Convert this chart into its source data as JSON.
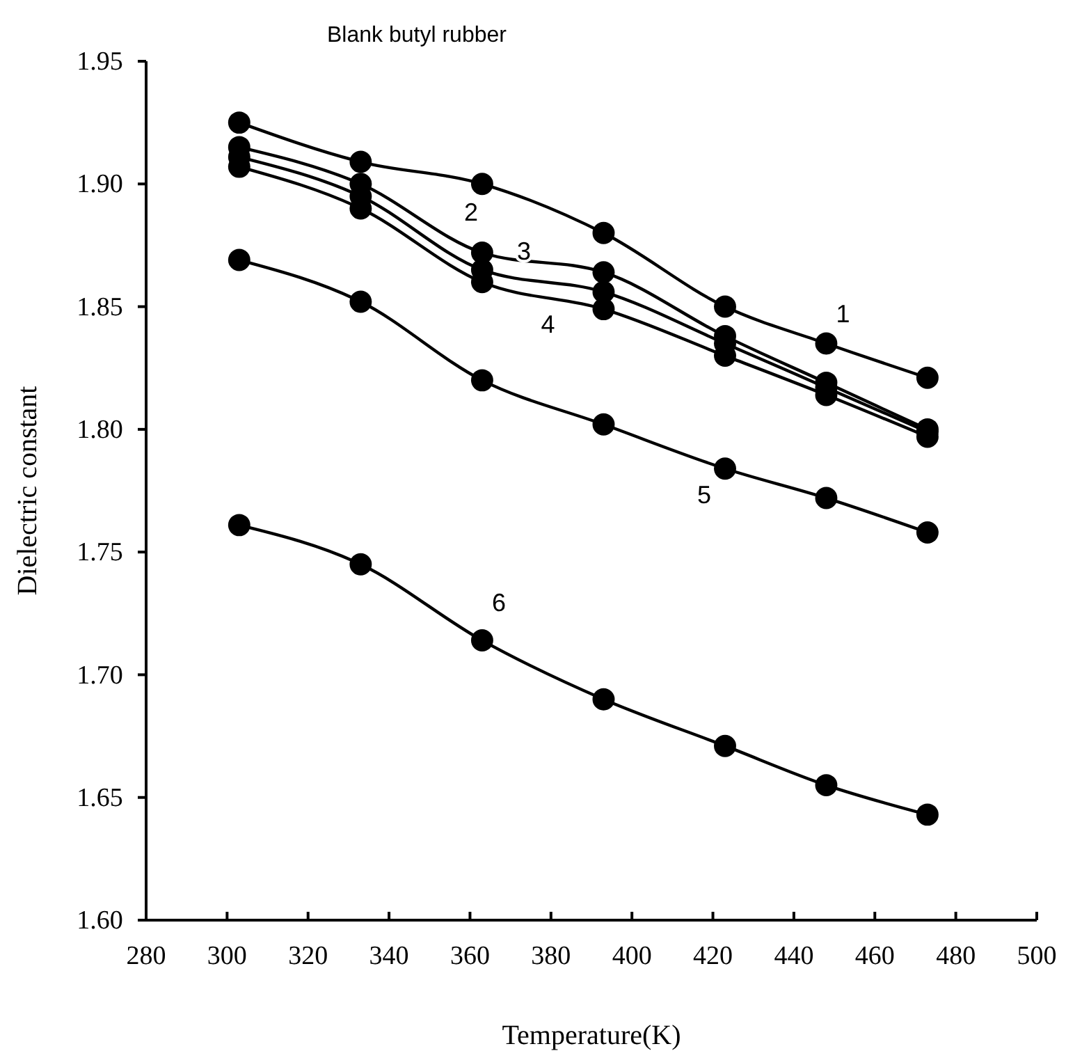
{
  "chart_data": {
    "type": "line",
    "title": "Blank butyl rubber",
    "xlabel": "Temperature(K)",
    "ylabel": "Dielectric constant",
    "x": [
      303,
      333,
      363,
      393,
      423,
      448,
      473
    ],
    "series": [
      {
        "color": "#000000",
        "values": [
          1.925,
          1.909,
          1.9,
          1.88,
          1.85,
          1.835,
          1.821
        ]
      },
      {
        "color": "#000000",
        "values": [
          1.915,
          1.9,
          1.872,
          1.864,
          1.838,
          1.819,
          1.8
        ]
      },
      {
        "color": "#000000",
        "values": [
          1.911,
          1.895,
          1.865,
          1.856,
          1.835,
          1.817,
          1.799
        ]
      },
      {
        "color": "#000000",
        "values": [
          1.907,
          1.89,
          1.86,
          1.849,
          1.83,
          1.814,
          1.797
        ]
      },
      {
        "color": "#000000",
        "values": [
          1.869,
          1.852,
          1.82,
          1.802,
          1.784,
          1.772,
          1.758
        ]
      },
      {
        "color": "#000000",
        "values": [
          1.761,
          1.745,
          1.714,
          1.69,
          1.671,
          1.655,
          1.643
        ]
      }
    ],
    "annotations": [
      "1",
      "2",
      "3",
      "4",
      "5",
      "6"
    ],
    "xlim": [
      280,
      500
    ],
    "xticks": [
      280,
      300,
      320,
      340,
      360,
      380,
      400,
      420,
      440,
      460,
      480,
      500
    ],
    "ylim": [
      1.6,
      1.95
    ],
    "yticks": [
      {
        "value": 1.6,
        "label": "1.60"
      },
      {
        "value": 1.65,
        "label": "1.65"
      },
      {
        "value": 1.7,
        "label": "1.70"
      },
      {
        "value": 1.75,
        "label": "1.75"
      },
      {
        "value": 1.8,
        "label": "1.80"
      },
      {
        "value": 1.85,
        "label": "1.85"
      },
      {
        "value": 1.9,
        "label": "1.90"
      },
      {
        "value": 1.95,
        "label": "1.95"
      }
    ],
    "grid": false,
    "marker": "circle",
    "line_style": "solid"
  }
}
